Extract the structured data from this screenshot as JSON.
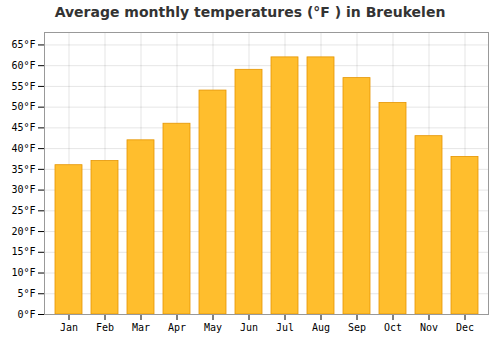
{
  "chart_data": {
    "type": "bar",
    "title": "Average monthly temperatures (°F ) in Breukelen",
    "categories": [
      "Jan",
      "Feb",
      "Mar",
      "Apr",
      "May",
      "Jun",
      "Jul",
      "Aug",
      "Sep",
      "Oct",
      "Nov",
      "Dec"
    ],
    "values": [
      36,
      37,
      42,
      46,
      54,
      59,
      62,
      62,
      57,
      51,
      43,
      38
    ],
    "color": "#FFBE2D",
    "ylim": [
      0,
      68
    ],
    "yticks": [
      {
        "value": 0,
        "label": "0°F"
      },
      {
        "value": 5,
        "label": "5°F"
      },
      {
        "value": 10,
        "label": "10°F"
      },
      {
        "value": 15,
        "label": "15°F"
      },
      {
        "value": 20,
        "label": "20°F"
      },
      {
        "value": 25,
        "label": "25°F"
      },
      {
        "value": 30,
        "label": "30°F"
      },
      {
        "value": 35,
        "label": "35°F"
      },
      {
        "value": 40,
        "label": "40°F"
      },
      {
        "value": 45,
        "label": "45°F"
      },
      {
        "value": 50,
        "label": "50°F"
      },
      {
        "value": 55,
        "label": "55°F"
      },
      {
        "value": 60,
        "label": "60°F"
      },
      {
        "value": 65,
        "label": "65°F"
      }
    ],
    "grid": true
  }
}
